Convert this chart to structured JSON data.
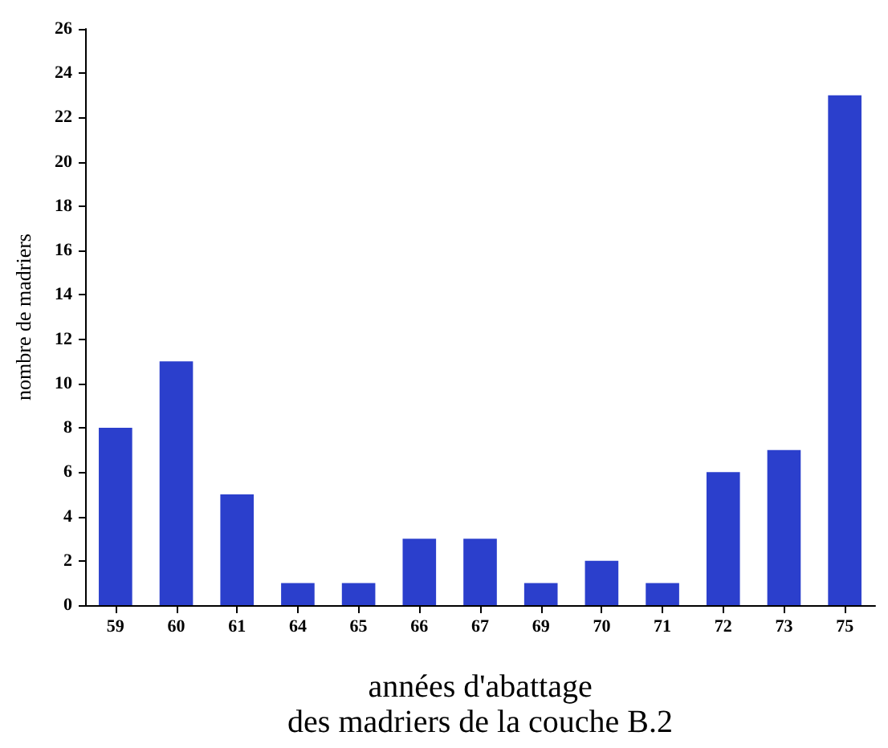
{
  "chart_data": {
    "type": "bar",
    "xlabel": "années d'abattage\ndes madriers de la couche B.2",
    "ylabel": "nombre de madriers",
    "categories": [
      "59",
      "60",
      "61",
      "64",
      "65",
      "66",
      "67",
      "69",
      "70",
      "71",
      "72",
      "73",
      "75"
    ],
    "values": [
      8,
      11,
      5,
      1,
      1,
      3,
      3,
      1,
      2,
      1,
      6,
      7,
      23
    ],
    "color": "#2b3fcc",
    "ylim": [
      0,
      26
    ],
    "yticks": [
      0,
      2,
      4,
      6,
      8,
      10,
      12,
      14,
      16,
      18,
      20,
      22,
      24,
      26
    ],
    "grid": false
  }
}
